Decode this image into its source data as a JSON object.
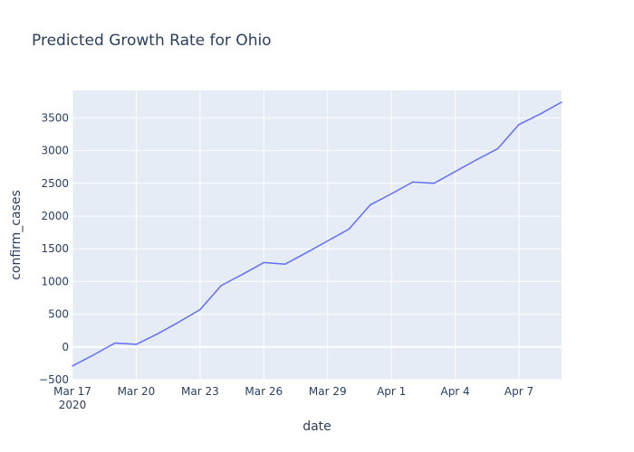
{
  "chart_data": {
    "type": "line",
    "title": "Predicted Growth Rate for Ohio",
    "xlabel": "date",
    "ylabel": "confirm_cases",
    "x": [
      "2020-03-17",
      "2020-03-18",
      "2020-03-19",
      "2020-03-20",
      "2020-03-21",
      "2020-03-22",
      "2020-03-23",
      "2020-03-24",
      "2020-03-25",
      "2020-03-26",
      "2020-03-27",
      "2020-03-28",
      "2020-03-29",
      "2020-03-30",
      "2020-03-31",
      "2020-04-01",
      "2020-04-02",
      "2020-04-03",
      "2020-04-04",
      "2020-04-05",
      "2020-04-06",
      "2020-04-07",
      "2020-04-08",
      "2020-04-09"
    ],
    "series": [
      {
        "values": [
          -290,
          -120,
          60,
          40,
          200,
          380,
          570,
          940,
          1110,
          1290,
          1265,
          1440,
          1620,
          1800,
          2170,
          2340,
          2520,
          2500,
          2680,
          2860,
          3030,
          3400,
          3560,
          3740
        ]
      }
    ],
    "x_ticks": [
      {
        "date": "2020-03-17",
        "label": "Mar 17",
        "sublabel": "2020"
      },
      {
        "date": "2020-03-20",
        "label": "Mar 20"
      },
      {
        "date": "2020-03-23",
        "label": "Mar 23"
      },
      {
        "date": "2020-03-26",
        "label": "Mar 26"
      },
      {
        "date": "2020-03-29",
        "label": "Mar 29"
      },
      {
        "date": "2020-04-01",
        "label": "Apr 1"
      },
      {
        "date": "2020-04-04",
        "label": "Apr 4"
      },
      {
        "date": "2020-04-07",
        "label": "Apr 7"
      }
    ],
    "y_ticks": [
      -500,
      0,
      500,
      1000,
      1500,
      2000,
      2500,
      3000,
      3500
    ],
    "y_tick_labels": [
      "−500",
      "0",
      "500",
      "1000",
      "1500",
      "2000",
      "2500",
      "3000",
      "3500"
    ],
    "xlim": [
      "2020-03-17",
      "2020-04-09"
    ],
    "ylim": [
      -500,
      3920
    ],
    "grid": true,
    "colors": {
      "line": "#636efa",
      "plot_bg": "#e5ecf6",
      "grid": "#ffffff",
      "text": "#2a3f5f"
    }
  }
}
